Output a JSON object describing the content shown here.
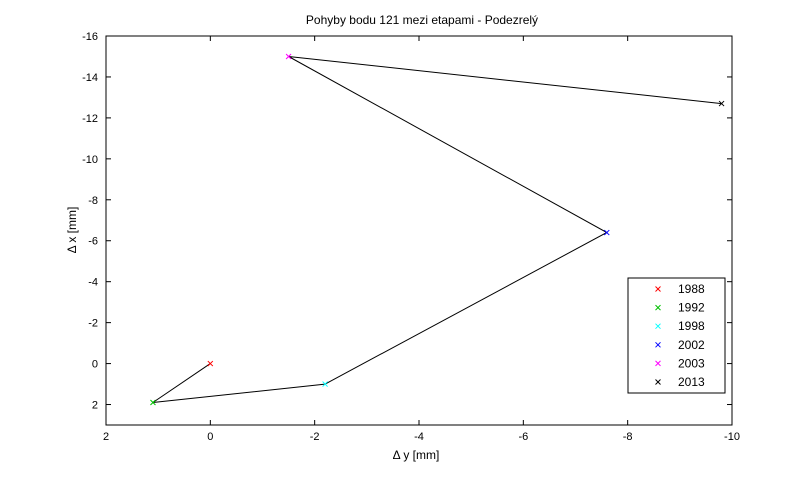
{
  "chart_data": {
    "type": "line",
    "title": "Pohyby bodu 121 mezi etapami - Podezrelý",
    "xlabel": "Δ y [mm]",
    "ylabel": "Δ x [mm]",
    "xlim": [
      2,
      -10
    ],
    "ylim": [
      3,
      -16
    ],
    "x_reversed": true,
    "y_reversed": true,
    "xticks": [
      2,
      0,
      -2,
      -4,
      -6,
      -8,
      -10
    ],
    "yticks": [
      -16,
      -14,
      -12,
      -10,
      -8,
      -6,
      -4,
      -2,
      0,
      2
    ],
    "grid": false,
    "legend_position": "bottom-right",
    "path": {
      "color": "#000000",
      "points": [
        {
          "epoch": "1988",
          "dy": 0.0,
          "dx": 0.0
        },
        {
          "epoch": "1992",
          "dy": 1.1,
          "dx": 1.9
        },
        {
          "epoch": "1998",
          "dy": -2.2,
          "dx": 1.0
        },
        {
          "epoch": "2002",
          "dy": -7.6,
          "dx": -6.4
        },
        {
          "epoch": "2003",
          "dy": -1.5,
          "dx": -15.0
        },
        {
          "epoch": "2013",
          "dy": -9.8,
          "dx": -12.7
        }
      ]
    },
    "series": [
      {
        "name": "1988",
        "color": "#ff0000",
        "marker": "x",
        "dy": 0.0,
        "dx": 0.0
      },
      {
        "name": "1992",
        "color": "#00c000",
        "marker": "x",
        "dy": 1.1,
        "dx": 1.9
      },
      {
        "name": "1998",
        "color": "#00ffff",
        "marker": "x",
        "dy": -2.2,
        "dx": 1.0
      },
      {
        "name": "2002",
        "color": "#0000ff",
        "marker": "x",
        "dy": -7.6,
        "dx": -6.4
      },
      {
        "name": "2003",
        "color": "#ff00ff",
        "marker": "x",
        "dy": -1.5,
        "dx": -15.0
      },
      {
        "name": "2013",
        "color": "#000000",
        "marker": "x",
        "dy": -9.8,
        "dx": -12.7
      }
    ]
  }
}
